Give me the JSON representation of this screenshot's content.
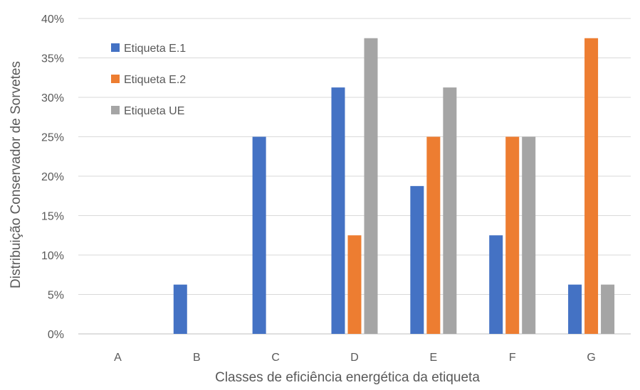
{
  "chart_data": {
    "type": "bar",
    "title": "",
    "xlabel": "Classes de eficiência energética da etiqueta",
    "ylabel": "Distribuição Conservador de Sorvetes",
    "categories": [
      "A",
      "B",
      "C",
      "D",
      "E",
      "F",
      "G"
    ],
    "yticks": [
      "0%",
      "5%",
      "10%",
      "15%",
      "20%",
      "25%",
      "30%",
      "35%",
      "40%"
    ],
    "ylim": [
      0,
      40
    ],
    "grid": true,
    "legend_position": "top-left",
    "series": [
      {
        "name": "Etiqueta E.1",
        "color": "#4472C4",
        "values": [
          0,
          6.25,
          25,
          31.25,
          18.75,
          12.5,
          6.25
        ]
      },
      {
        "name": "Etiqueta E.2",
        "color": "#ED7D31",
        "values": [
          0,
          0,
          0,
          12.5,
          25,
          25,
          37.5
        ]
      },
      {
        "name": "Etiqueta UE",
        "color": "#A5A5A5",
        "values": [
          0,
          0,
          0,
          37.5,
          31.25,
          25,
          6.25
        ]
      }
    ]
  }
}
